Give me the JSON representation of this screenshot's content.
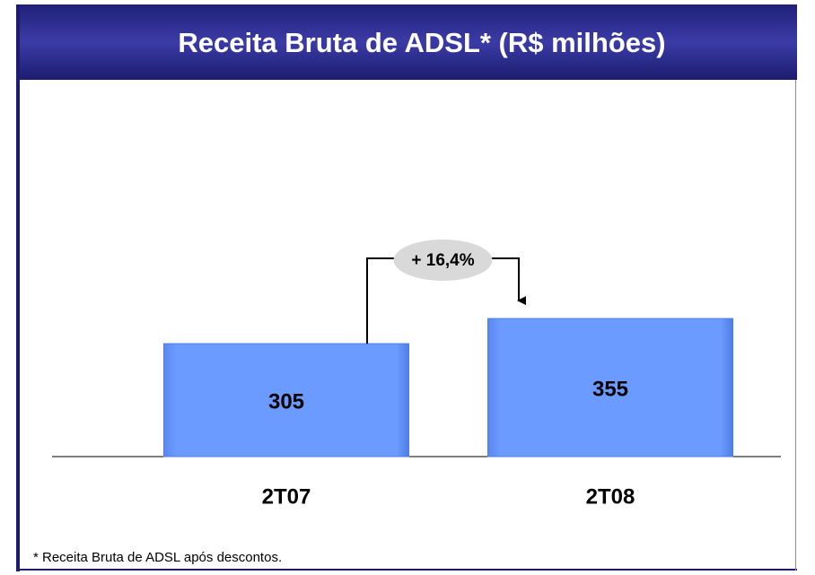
{
  "chart_data": {
    "type": "bar",
    "title": "Receita Bruta de ADSL* (R$ milhões)",
    "categories": [
      "2T07",
      "2T08"
    ],
    "values": [
      305,
      355
    ],
    "color": "#6b9bff",
    "ylim": [
      80,
      800
    ],
    "annotation": "+ 16,4%",
    "footnote": "* Receita Bruta de ADSL após descontos."
  }
}
